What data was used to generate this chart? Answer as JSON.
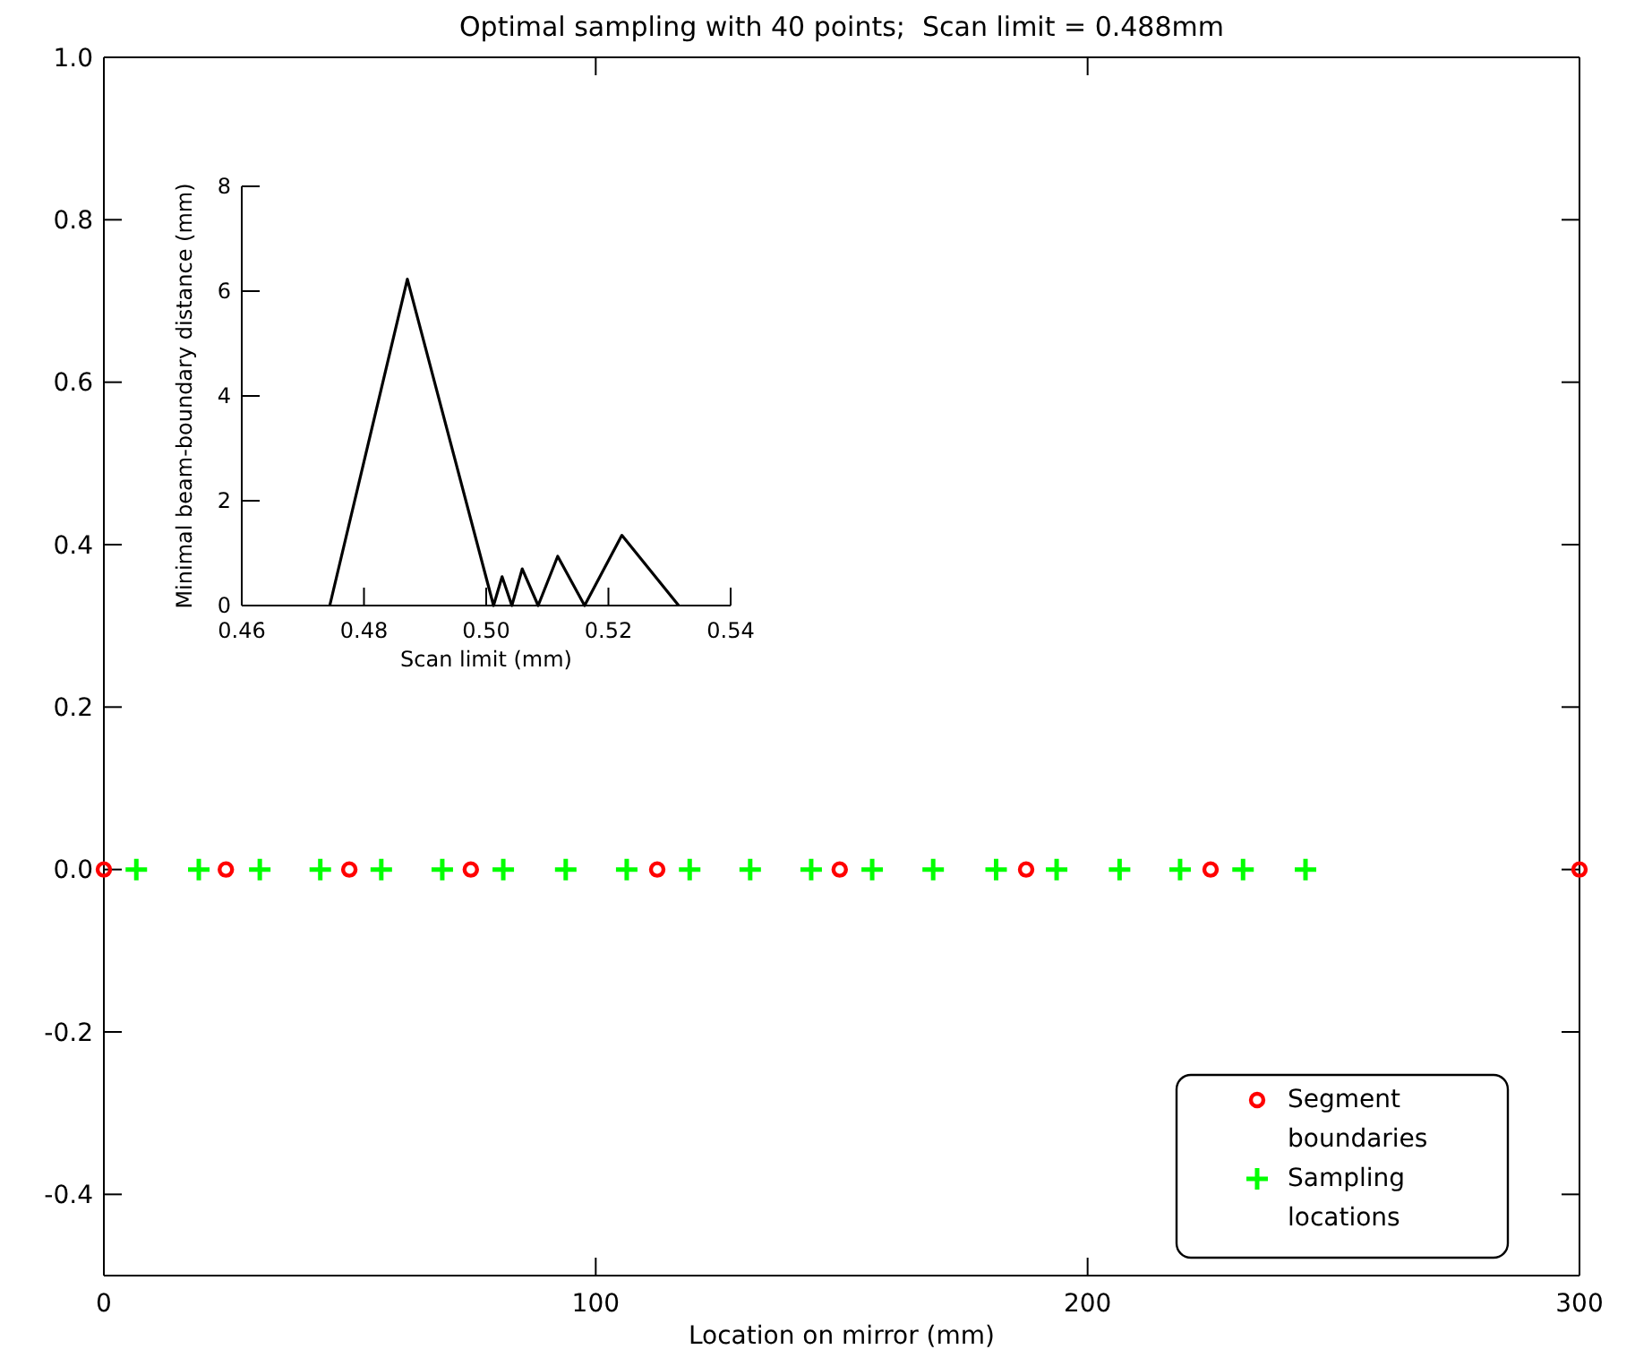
{
  "chart_data": [
    {
      "type": "scatter",
      "title": "Optimal sampling with 40 points;  Scan limit = 0.488mm",
      "xlabel": "Location on mirror (mm)",
      "xlim": [
        0,
        300
      ],
      "xticks": [
        0,
        100,
        200,
        300
      ],
      "ylim": [
        -0.5,
        1.0
      ],
      "yticks": [
        {
          "value": -0.4,
          "label": "-0.4"
        },
        {
          "value": -0.2,
          "label": "-0.2"
        },
        {
          "value": 0,
          "label": "0.0"
        },
        {
          "value": 0.2,
          "label": "0.2"
        },
        {
          "value": 0.4,
          "label": "0.4"
        },
        {
          "value": 0.6,
          "label": "0.6"
        },
        {
          "value": 0.8,
          "label": "0.8"
        },
        {
          "value": 1.0,
          "label": "1.0"
        }
      ],
      "legend": "bottom right",
      "grid": false,
      "series": [
        {
          "name": "Segment boundaries",
          "color": "#ff0000",
          "marker": "circle",
          "x": [
            0,
            24.8,
            49.9,
            74.6,
            112.5,
            149.6,
            187.5,
            225,
            300
          ],
          "values": [
            0,
            0,
            0,
            0,
            0,
            0,
            0,
            0,
            0
          ]
        },
        {
          "name": "Sampling locations",
          "color": "#00ff00",
          "marker": "cross",
          "x": [
            6.6,
            19.3,
            31.7,
            44.0,
            56.4,
            68.8,
            81.2,
            93.9,
            106.3,
            119.1,
            131.4,
            143.8,
            156.2,
            168.6,
            181.4,
            193.7,
            206.5,
            218.8,
            231.6,
            244.3
          ],
          "values": [
            0,
            0,
            0,
            0,
            0,
            0,
            0,
            0,
            0,
            0,
            0,
            0,
            0,
            0,
            0,
            0,
            0,
            0,
            0,
            0
          ]
        }
      ]
    },
    {
      "type": "line",
      "xlabel": "Scan limit (mm)",
      "ylabel": "Minimal beam-boundary distance (mm)",
      "xlim": [
        0.46,
        0.54
      ],
      "xticks": [
        {
          "value": 0.46,
          "label": "0.46"
        },
        {
          "value": 0.48,
          "label": "0.48"
        },
        {
          "value": 0.5,
          "label": "0.50"
        },
        {
          "value": 0.52,
          "label": "0.52"
        },
        {
          "value": 0.54,
          "label": "0.54"
        }
      ],
      "ylim": [
        0,
        8
      ],
      "yticks": [
        0,
        2,
        4,
        6,
        8
      ],
      "grid": false,
      "legend": false,
      "series": [
        {
          "color": "#000000",
          "marker": "none",
          "line_style": "solid",
          "x": [
            0.4744,
            0.4871,
            0.5012,
            0.5026,
            0.5042,
            0.5059,
            0.5085,
            0.5117,
            0.5161,
            0.5222,
            0.5315
          ],
          "values": [
            0,
            6.23,
            0,
            0.55,
            0,
            0.7,
            0,
            0.94,
            0,
            1.34,
            0
          ]
        }
      ]
    }
  ]
}
